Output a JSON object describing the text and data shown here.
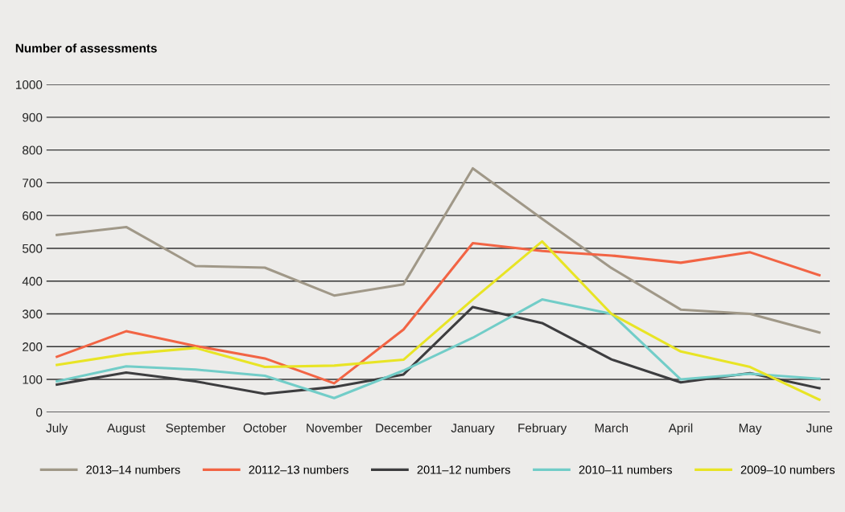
{
  "chart_data": {
    "type": "line",
    "ylabel": "Number of assessments",
    "categories": [
      "July",
      "August",
      "September",
      "October",
      "November",
      "December",
      "January",
      "February",
      "March",
      "April",
      "May",
      "June"
    ],
    "series": [
      {
        "name": "2013–14 numbers",
        "color": "#a09888",
        "values": [
          541,
          565,
          446,
          441,
          356,
          390,
          744,
          590,
          440,
          313,
          300,
          243
        ]
      },
      {
        "name": "20112–13 numbers",
        "color": "#f26444",
        "values": [
          169,
          247,
          202,
          164,
          88,
          252,
          516,
          492,
          478,
          456,
          488,
          418
        ]
      },
      {
        "name": "2011–12 numbers",
        "color": "#3d3d3f",
        "values": [
          84,
          121,
          94,
          56,
          77,
          115,
          321,
          272,
          161,
          91,
          119,
          73
        ]
      },
      {
        "name": "2010–11 numbers",
        "color": "#72cdc8",
        "values": [
          94,
          140,
          130,
          111,
          43,
          127,
          227,
          344,
          300,
          100,
          117,
          102
        ]
      },
      {
        "name": "2009–10 numbers",
        "color": "#e8e425",
        "values": [
          144,
          177,
          196,
          138,
          142,
          160,
          344,
          521,
          300,
          185,
          138,
          38
        ]
      }
    ],
    "ylim": [
      0,
      1000
    ],
    "yticks": [
      0,
      100,
      200,
      300,
      400,
      500,
      600,
      700,
      800,
      900,
      1000
    ],
    "grid": "y",
    "legend": "bottom",
    "marker": "none",
    "line_style": "solid"
  }
}
